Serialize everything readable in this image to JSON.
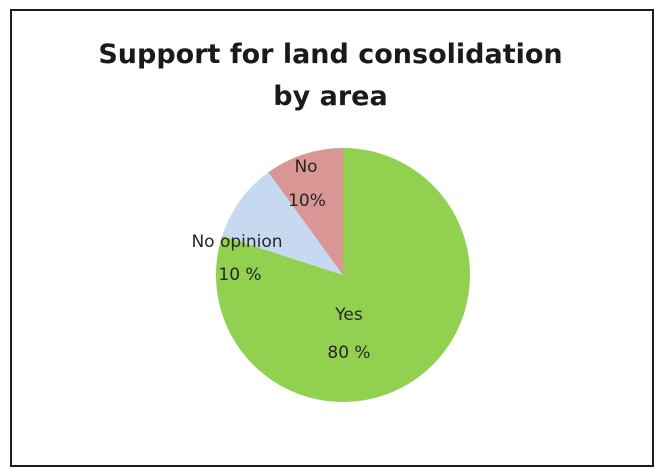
{
  "chart_data": {
    "type": "pie",
    "title": "Support for land consolidation by area",
    "title_lines": [
      "Support for land consolidation",
      "by area"
    ],
    "slices": [
      {
        "category": "Yes",
        "value": 80,
        "value_label": "80 %",
        "color": "#92d050"
      },
      {
        "category": "No opinion",
        "value": 10,
        "value_label": "10 %",
        "color": "#c6d9f1"
      },
      {
        "category": "No",
        "value": 10,
        "value_label": "10%",
        "color": "#d99694"
      }
    ],
    "legend": "none",
    "labels_on_slices": true
  }
}
